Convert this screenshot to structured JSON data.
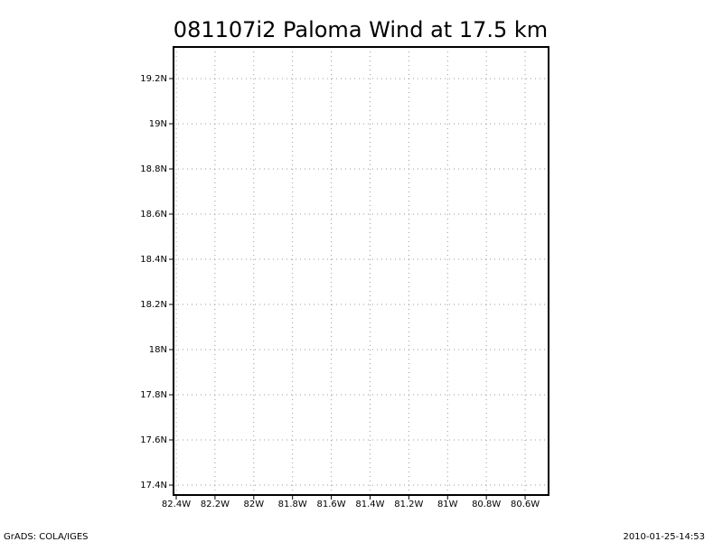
{
  "chart_data": {
    "type": "map",
    "title": "081107i2 Paloma Wind at 17.5 km",
    "xlim": [
      -82.414,
      -80.479
    ],
    "ylim": [
      17.356,
      19.34
    ],
    "grid": true,
    "xticks": [
      {
        "value": -82.4,
        "label": "82.4W"
      },
      {
        "value": -82.2,
        "label": "82.2W"
      },
      {
        "value": -82,
        "label": "82W"
      },
      {
        "value": -81.8,
        "label": "81.8W"
      },
      {
        "value": -81.6,
        "label": "81.6W"
      },
      {
        "value": -81.4,
        "label": "81.4W"
      },
      {
        "value": -81.2,
        "label": "81.2W"
      },
      {
        "value": -81,
        "label": "81W"
      },
      {
        "value": -80.8,
        "label": "80.8W"
      },
      {
        "value": -80.6,
        "label": "80.6W"
      }
    ],
    "yticks": [
      {
        "value": 17.4,
        "label": "17.4N"
      },
      {
        "value": 17.6,
        "label": "17.6N"
      },
      {
        "value": 17.8,
        "label": "17.8N"
      },
      {
        "value": 18,
        "label": "18N"
      },
      {
        "value": 18.2,
        "label": "18.2N"
      },
      {
        "value": 18.4,
        "label": "18.4N"
      },
      {
        "value": 18.6,
        "label": "18.6N"
      },
      {
        "value": 18.8,
        "label": "18.8N"
      },
      {
        "value": 19,
        "label": "19N"
      },
      {
        "value": 19.2,
        "label": "19.2N"
      }
    ],
    "footer_left": "GrADS: COLA/IGES",
    "footer_right": "2010-01-25-14:53"
  }
}
